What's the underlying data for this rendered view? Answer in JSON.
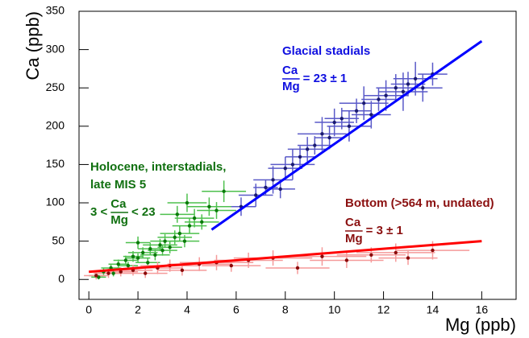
{
  "chart_data": {
    "type": "scatter",
    "xlabel": "Mg (ppb)",
    "ylabel": "Ca (ppb)",
    "xlim": [
      -0.4,
      17.4
    ],
    "ylim": [
      -26,
      350
    ],
    "xticks": [
      0,
      2,
      4,
      6,
      8,
      10,
      12,
      14,
      16
    ],
    "yticks": [
      0,
      50,
      100,
      150,
      200,
      250,
      300,
      350
    ],
    "series": [
      {
        "color": "#1a1a70",
        "error_color": "#5a5ac8",
        "x": [
          6.2,
          6.8,
          7.2,
          7.5,
          7.8,
          8.0,
          8.3,
          8.6,
          8.9,
          9.2,
          9.5,
          9.8,
          10.0,
          10.3,
          10.6,
          10.9,
          11.2,
          11.5,
          11.8,
          12.1,
          12.5,
          12.8,
          13.0,
          13.3,
          13.6,
          14.0
        ],
        "values": [
          95,
          110,
          120,
          130,
          118,
          145,
          150,
          160,
          170,
          175,
          190,
          185,
          205,
          210,
          200,
          220,
          230,
          215,
          235,
          240,
          250,
          245,
          255,
          262,
          250,
          268
        ],
        "xerr": [
          0.6,
          0.7,
          0.5,
          0.8,
          0.6,
          0.7,
          0.9,
          0.6,
          0.8,
          0.7,
          1.0,
          0.6,
          0.8,
          0.7,
          0.9,
          0.6,
          1.0,
          0.8,
          0.7,
          0.9,
          0.8,
          1.0,
          0.7,
          0.9,
          0.8,
          0.6
        ],
        "yerr": [
          12,
          15,
          10,
          18,
          12,
          15,
          20,
          14,
          16,
          12,
          22,
          15,
          18,
          14,
          20,
          16,
          22,
          18,
          15,
          20,
          18,
          25,
          16,
          22,
          18,
          15
        ]
      },
      {
        "color": "#0a7a0a",
        "error_color": "#4ec04e",
        "x": [
          0.3,
          0.6,
          0.9,
          1.2,
          1.5,
          1.8,
          2.0,
          2.2,
          2.5,
          2.7,
          2.9,
          3.1,
          3.3,
          3.5,
          3.7,
          3.9,
          4.1,
          4.3,
          4.6,
          4.9,
          5.2,
          5.5,
          1.0,
          1.6,
          2.4,
          3.0,
          0.4,
          2.0,
          3.6,
          4.0
        ],
        "values": [
          5,
          10,
          15,
          20,
          25,
          30,
          28,
          35,
          40,
          32,
          45,
          50,
          42,
          55,
          60,
          50,
          70,
          80,
          75,
          95,
          90,
          115,
          8,
          18,
          22,
          38,
          3,
          48,
          85,
          100
        ],
        "xerr": [
          0.3,
          0.3,
          0.4,
          0.4,
          0.5,
          0.4,
          0.5,
          0.6,
          0.5,
          0.6,
          0.7,
          0.6,
          0.5,
          0.7,
          0.8,
          0.6,
          0.7,
          0.8,
          0.7,
          0.9,
          0.8,
          0.9,
          0.3,
          0.4,
          0.5,
          0.6,
          0.3,
          0.5,
          0.7,
          0.8
        ],
        "yerr": [
          4,
          5,
          5,
          6,
          6,
          7,
          6,
          7,
          8,
          7,
          8,
          9,
          8,
          9,
          10,
          8,
          10,
          12,
          10,
          12,
          11,
          14,
          4,
          5,
          6,
          7,
          3,
          8,
          11,
          12
        ]
      },
      {
        "color": "#8b0a0a",
        "error_color": "#f59a9a",
        "x": [
          0.3,
          0.8,
          1.3,
          1.8,
          2.3,
          2.8,
          3.3,
          3.8,
          4.5,
          5.2,
          5.8,
          6.5,
          7.5,
          8.5,
          9.5,
          10.5,
          11.5,
          12.5,
          13.0,
          14.0
        ],
        "values": [
          5,
          8,
          10,
          12,
          8,
          15,
          18,
          12,
          20,
          22,
          18,
          25,
          28,
          15,
          30,
          25,
          32,
          35,
          28,
          38
        ],
        "xerr": [
          0.5,
          0.6,
          0.7,
          0.8,
          0.9,
          1.0,
          1.2,
          1.0,
          1.3,
          1.5,
          1.2,
          1.4,
          1.6,
          1.3,
          1.8,
          1.5,
          1.4,
          1.6,
          1.2,
          1.5
        ],
        "yerr": [
          5,
          6,
          6,
          7,
          6,
          8,
          8,
          7,
          9,
          10,
          8,
          10,
          10,
          8,
          12,
          10,
          10,
          12,
          9,
          12
        ]
      }
    ],
    "lines": [
      {
        "color": "#0000ff",
        "x": [
          5,
          16
        ],
        "y": [
          65,
          311
        ]
      },
      {
        "color": "#ff0000",
        "x": [
          0,
          16
        ],
        "y": [
          10,
          50
        ]
      }
    ],
    "annotations": [
      {
        "color": "#1010e0",
        "lines": [
          "Glacial stadials"
        ],
        "fraction": {
          "numerator": "Ca",
          "denominator": "Mg",
          "after": "= 23 ± 1"
        }
      },
      {
        "color": "#107010",
        "lines": [
          "Holocene, interstadials,",
          "late MIS 5"
        ],
        "fraction": {
          "before": "3 <",
          "numerator": "Ca",
          "denominator": "Mg",
          "after": "< 23"
        }
      },
      {
        "color": "#8b1010",
        "lines": [
          "Bottom (>564 m, undated)"
        ],
        "fraction": {
          "numerator": "Ca",
          "denominator": "Mg",
          "after": "= 3 ± 1"
        }
      }
    ]
  }
}
